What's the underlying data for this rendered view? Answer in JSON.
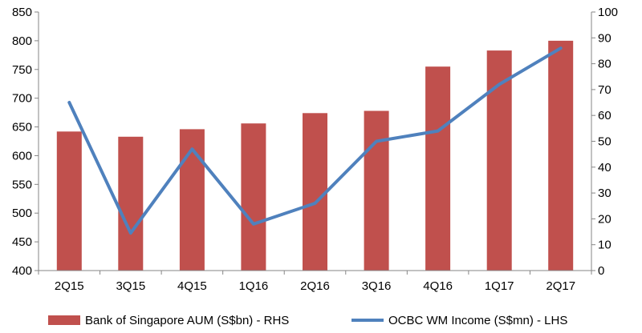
{
  "chart_data": {
    "type": "bar",
    "categories": [
      "2Q15",
      "3Q15",
      "4Q15",
      "1Q16",
      "2Q16",
      "3Q16",
      "4Q16",
      "1Q17",
      "2Q17"
    ],
    "series": [
      {
        "name": "Bank of Singapore AUM (S$bn) - RHS",
        "type": "bar",
        "axis": "left",
        "color": "#C0504D",
        "values": [
          642,
          633,
          646,
          656,
          674,
          678,
          755,
          783,
          800
        ]
      },
      {
        "name": "OCBC WM Income (S$mn) - LHS",
        "type": "line",
        "axis": "right",
        "color": "#4F81BD",
        "values": [
          65,
          14.5,
          47,
          18,
          26,
          50,
          54,
          72,
          86
        ]
      }
    ],
    "y_left": {
      "min": 400,
      "max": 850,
      "step": 50,
      "ticks": [
        400,
        450,
        500,
        550,
        600,
        650,
        700,
        750,
        800,
        850
      ]
    },
    "y_right": {
      "min": 0,
      "max": 100,
      "step": 10,
      "ticks": [
        0,
        10,
        20,
        30,
        40,
        50,
        60,
        70,
        80,
        90,
        100
      ]
    },
    "legend_position": "bottom",
    "grid": false
  }
}
